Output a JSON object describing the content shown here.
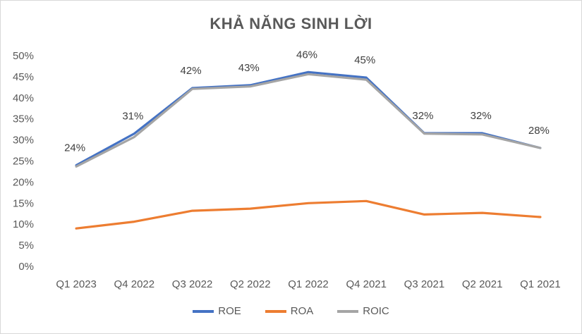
{
  "chart_data": {
    "type": "line",
    "title": "KHẢ NĂNG SINH LỜI",
    "categories": [
      "Q1 2023",
      "Q4 2022",
      "Q3 2022",
      "Q2 2022",
      "Q1 2022",
      "Q4 2021",
      "Q3 2021",
      "Q2 2021",
      "Q1 2021"
    ],
    "ylim": [
      0,
      0.5
    ],
    "yticks": [
      "0%",
      "5%",
      "10%",
      "15%",
      "20%",
      "25%",
      "30%",
      "35%",
      "40%",
      "45%",
      "50%"
    ],
    "grid": false,
    "legend_position": "bottom",
    "series": [
      {
        "name": "ROE",
        "color": "#4472c4",
        "values": [
          0.24,
          0.315,
          0.423,
          0.43,
          0.461,
          0.448,
          0.316,
          0.316,
          0.281
        ]
      },
      {
        "name": "ROA",
        "color": "#ed7d31",
        "values": [
          0.09,
          0.106,
          0.132,
          0.137,
          0.15,
          0.155,
          0.123,
          0.127,
          0.117
        ]
      },
      {
        "name": "ROIC",
        "color": "#a5a5a5",
        "values": [
          0.237,
          0.307,
          0.421,
          0.427,
          0.456,
          0.443,
          0.315,
          0.313,
          0.281
        ]
      }
    ],
    "data_labels": [
      "24%",
      "31%",
      "42%",
      "43%",
      "46%",
      "45%",
      "32%",
      "32%",
      "28%"
    ]
  }
}
